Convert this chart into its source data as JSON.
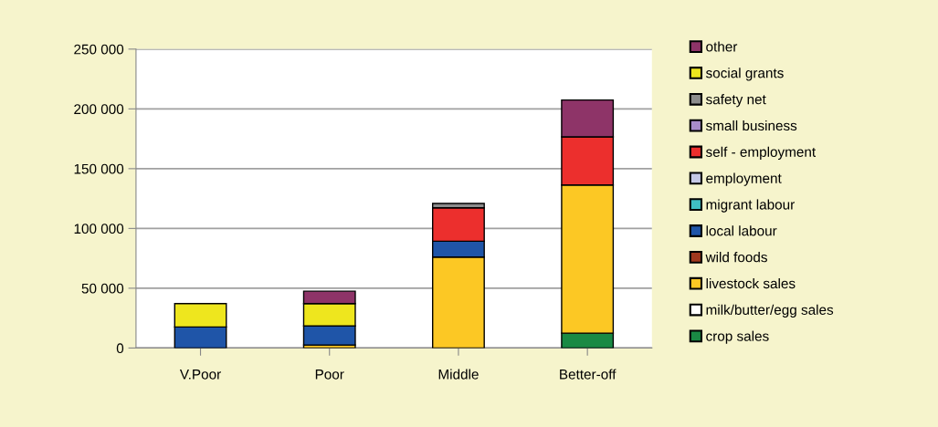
{
  "chart_data": {
    "type": "bar",
    "stacked": true,
    "categories": [
      "V.Poor",
      "Poor",
      "Middle",
      "Better-off"
    ],
    "series": [
      {
        "name": "crop sales",
        "color": "#1a8a44",
        "values": [
          null,
          null,
          null,
          12400
        ]
      },
      {
        "name": "milk/butter/egg sales",
        "color": "#ffffff",
        "values": [
          null,
          null,
          null,
          null
        ]
      },
      {
        "name": "livestock sales",
        "color": "#fcc824",
        "values": [
          null,
          2500,
          76100,
          123900
        ]
      },
      {
        "name": "wild foods",
        "color": "#a0381e",
        "values": [
          null,
          null,
          null,
          null
        ]
      },
      {
        "name": "local labour",
        "color": "#1f55a8",
        "values": [
          17600,
          15900,
          13200,
          null
        ]
      },
      {
        "name": "migrant labour",
        "color": "#3fbfc4",
        "values": [
          null,
          null,
          null,
          null
        ]
      },
      {
        "name": "employment",
        "color": "#c5c8e6",
        "values": [
          null,
          null,
          null,
          null
        ]
      },
      {
        "name": "self - employment",
        "color": "#ec2f2d",
        "values": [
          null,
          null,
          28000,
          40300
        ]
      },
      {
        "name": "small business",
        "color": "#a78bc9",
        "values": [
          null,
          null,
          null,
          null
        ]
      },
      {
        "name": "safety net",
        "color": "#8c8c8c",
        "values": [
          null,
          null,
          3600,
          null
        ]
      },
      {
        "name": "social grants",
        "color": "#eee61e",
        "values": [
          19500,
          18700,
          null,
          null
        ]
      },
      {
        "name": "other",
        "color": "#8e3468",
        "values": [
          null,
          10400,
          null,
          30800
        ]
      }
    ],
    "ylim": [
      0,
      250000
    ],
    "yticks": [
      {
        "value": 0,
        "label": "0"
      },
      {
        "value": 50000,
        "label": "50 000"
      },
      {
        "value": 100000,
        "label": "100 000"
      },
      {
        "value": 150000,
        "label": "150 000"
      },
      {
        "value": 200000,
        "label": "200 000"
      },
      {
        "value": 250000,
        "label": "250 000"
      }
    ],
    "grid": "y",
    "legend": "right"
  }
}
